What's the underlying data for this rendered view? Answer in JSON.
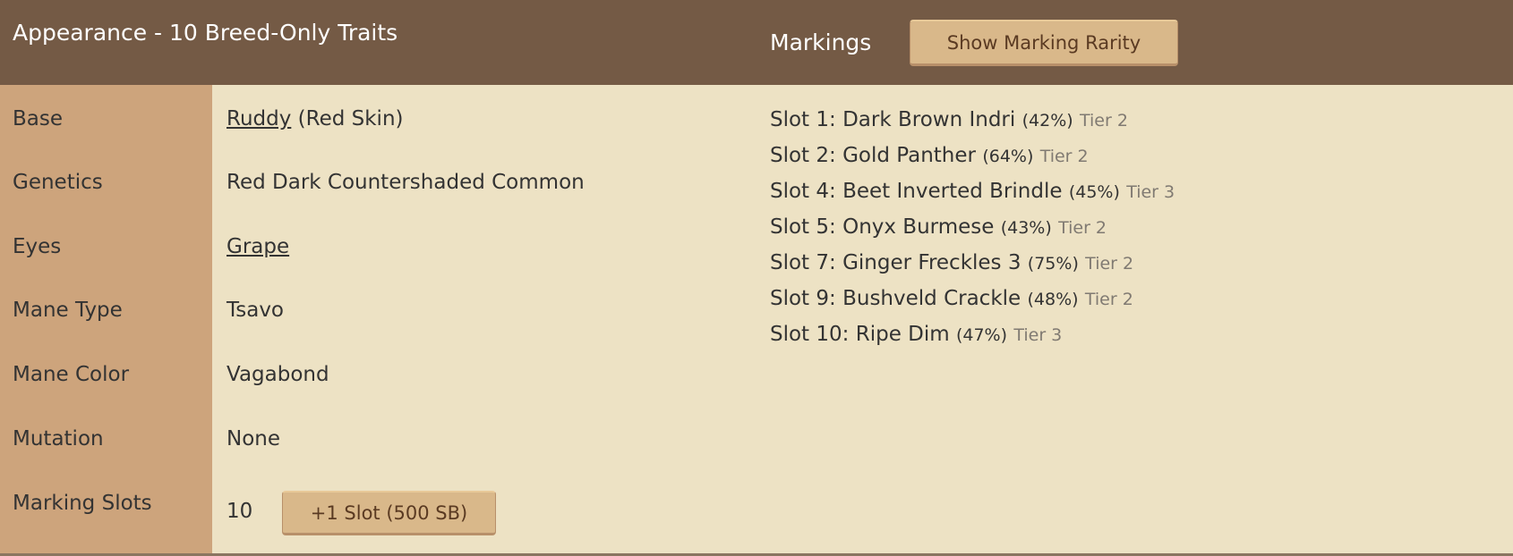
{
  "header": {
    "title": "Appearance - 10 Breed-Only Traits",
    "markings_title": "Markings",
    "show_rarity_label": "Show Marking Rarity"
  },
  "traits": [
    {
      "label": "Base",
      "value_link": "Ruddy",
      "value_suffix": " (Red Skin)"
    },
    {
      "label": "Genetics",
      "value": "Red Dark Countershaded Common"
    },
    {
      "label": "Eyes",
      "value_link": "Grape"
    },
    {
      "label": "Mane Type",
      "value": "Tsavo"
    },
    {
      "label": "Mane Color",
      "value": "Vagabond"
    },
    {
      "label": "Mutation",
      "value": "None"
    },
    {
      "label": "Marking Slots",
      "value": "10",
      "button": "+1 Slot (500 SB)"
    }
  ],
  "markings": [
    {
      "name": "Slot 1: Dark Brown Indri",
      "pct": "(42%)",
      "tier": "Tier 2"
    },
    {
      "name": "Slot 2: Gold Panther",
      "pct": "(64%)",
      "tier": "Tier 2"
    },
    {
      "name": "Slot 4: Beet Inverted Brindle",
      "pct": "(45%)",
      "tier": "Tier 3"
    },
    {
      "name": "Slot 5: Onyx Burmese",
      "pct": "(43%)",
      "tier": "Tier 2"
    },
    {
      "name": "Slot 7: Ginger Freckles 3",
      "pct": "(75%)",
      "tier": "Tier 2"
    },
    {
      "name": "Slot 9: Bushveld Crackle",
      "pct": "(48%)",
      "tier": "Tier 2"
    },
    {
      "name": "Slot 10: Ripe Dim",
      "pct": "(47%)",
      "tier": "Tier 3"
    }
  ],
  "colors": {
    "header": "#745a45",
    "label_column": "#cda47c",
    "background": "#ede2c4",
    "button": "#d9b88a"
  }
}
